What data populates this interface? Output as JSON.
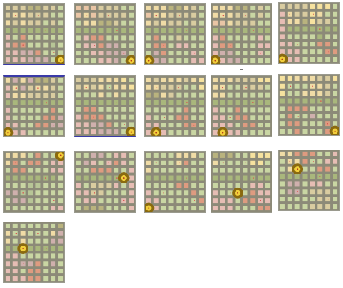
{
  "palette": {
    "green": "#c9d6a3",
    "olive": "#a9b77c",
    "cream": "#f0dca6",
    "peach": "#e9c5a5",
    "tan": "#d9cca0",
    "pink": "#e6bdb4",
    "salmon": "#de9b80",
    "khaki": "#b9b37e",
    "mauve": "#cfb0ad",
    "yellow": "#f6e29f",
    "sage": "#b7c596"
  },
  "thumbnails": [
    {
      "coin": [
        7,
        7
      ],
      "blue": "bottom"
    },
    {
      "coin": [
        7,
        7
      ],
      "blue": "none"
    },
    {
      "coin": [
        0,
        7
      ],
      "blue": "none"
    },
    {
      "coin": [
        0,
        7
      ],
      "blue": "none"
    },
    {
      "coin": [
        0,
        7
      ],
      "blue": "none"
    },
    {
      "coin": [
        0,
        7
      ],
      "blue": "top"
    },
    {
      "coin": [
        7,
        7
      ],
      "blue": "bottom"
    },
    {
      "coin": [
        1,
        7
      ],
      "blue": "none"
    },
    {
      "coin": [
        1,
        7
      ],
      "blue": "none"
    },
    {
      "coin": [
        7,
        7
      ],
      "blue": "none"
    },
    {
      "coin": [
        7,
        0
      ],
      "blue": "none"
    },
    {
      "coin": [
        6,
        3
      ],
      "blue": "none"
    },
    {
      "coin": [
        0,
        7
      ],
      "blue": "none"
    },
    {
      "coin": [
        3,
        5
      ],
      "blue": "none"
    },
    {
      "coin": [
        2,
        2
      ],
      "blue": "none"
    },
    {
      "coin": [
        2,
        3
      ],
      "blue": "none"
    }
  ]
}
